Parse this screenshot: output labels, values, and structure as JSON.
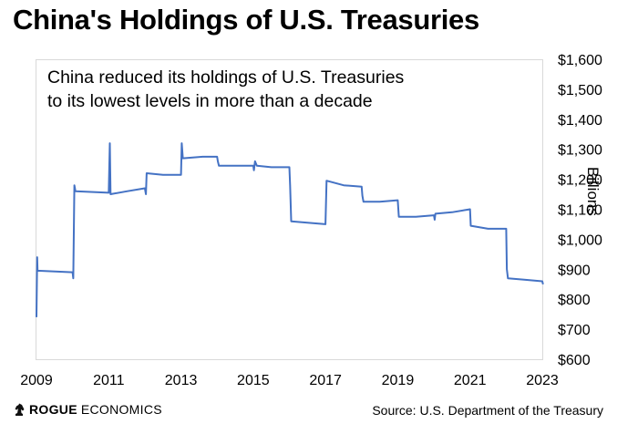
{
  "title": "China's Holdings of U.S. Treasuries",
  "annotation": {
    "line1": "China reduced its holdings of U.S. Treasuries",
    "line2": "to its lowest levels in more than a decade"
  },
  "brand": {
    "part1": "ROGUE",
    "part2": "ECONOMICS",
    "logo_icon": "chess-knight-icon"
  },
  "source": "Source: U.S. Department of the Treasury",
  "colors": {
    "line": "#4472c4",
    "frame": "#d9d9d9",
    "text": "#000000"
  },
  "chart_data": {
    "type": "line",
    "title": "China's Holdings of U.S. Treasuries",
    "xlabel": "",
    "ylabel": "Billions",
    "x_ticks": [
      "2009",
      "2011",
      "2013",
      "2015",
      "2017",
      "2019",
      "2021",
      "2023"
    ],
    "x_range": [
      2009,
      2023
    ],
    "y_ticks": [
      "$600",
      "$700",
      "$800",
      "$900",
      "$1,000",
      "$1,100",
      "$1,200",
      "$1,300",
      "$1,400",
      "$1,500",
      "$1,600"
    ],
    "ylim": [
      600,
      1600
    ],
    "y_axis_position": "right",
    "grid": false,
    "series": [
      {
        "name": "",
        "points": [
          [
            2009.0,
            740
          ],
          [
            2009.02,
            940
          ],
          [
            2009.03,
            895
          ],
          [
            2010.0,
            890
          ],
          [
            2010.02,
            870
          ],
          [
            2010.05,
            1180
          ],
          [
            2010.08,
            1160
          ],
          [
            2011.0,
            1155
          ],
          [
            2011.03,
            1320
          ],
          [
            2011.05,
            1150
          ],
          [
            2011.5,
            1160
          ],
          [
            2012.0,
            1170
          ],
          [
            2012.03,
            1150
          ],
          [
            2012.05,
            1220
          ],
          [
            2012.5,
            1215
          ],
          [
            2013.0,
            1215
          ],
          [
            2013.02,
            1320
          ],
          [
            2013.05,
            1270
          ],
          [
            2013.6,
            1275
          ],
          [
            2014.0,
            1275
          ],
          [
            2014.02,
            1260
          ],
          [
            2014.05,
            1245
          ],
          [
            2014.5,
            1245
          ],
          [
            2015.0,
            1245
          ],
          [
            2015.02,
            1230
          ],
          [
            2015.05,
            1260
          ],
          [
            2015.1,
            1245
          ],
          [
            2015.5,
            1240
          ],
          [
            2016.0,
            1240
          ],
          [
            2016.02,
            1180
          ],
          [
            2016.05,
            1060
          ],
          [
            2016.5,
            1055
          ],
          [
            2017.0,
            1050
          ],
          [
            2017.03,
            1195
          ],
          [
            2017.5,
            1180
          ],
          [
            2018.0,
            1175
          ],
          [
            2018.02,
            1145
          ],
          [
            2018.05,
            1125
          ],
          [
            2018.5,
            1125
          ],
          [
            2019.0,
            1130
          ],
          [
            2019.03,
            1075
          ],
          [
            2019.5,
            1075
          ],
          [
            2020.0,
            1080
          ],
          [
            2020.02,
            1065
          ],
          [
            2020.04,
            1085
          ],
          [
            2020.5,
            1090
          ],
          [
            2021.0,
            1100
          ],
          [
            2021.02,
            1045
          ],
          [
            2021.5,
            1035
          ],
          [
            2022.0,
            1035
          ],
          [
            2022.02,
            900
          ],
          [
            2022.05,
            870
          ],
          [
            2022.5,
            865
          ],
          [
            2023.0,
            860
          ],
          [
            2023.02,
            850
          ]
        ]
      }
    ]
  }
}
